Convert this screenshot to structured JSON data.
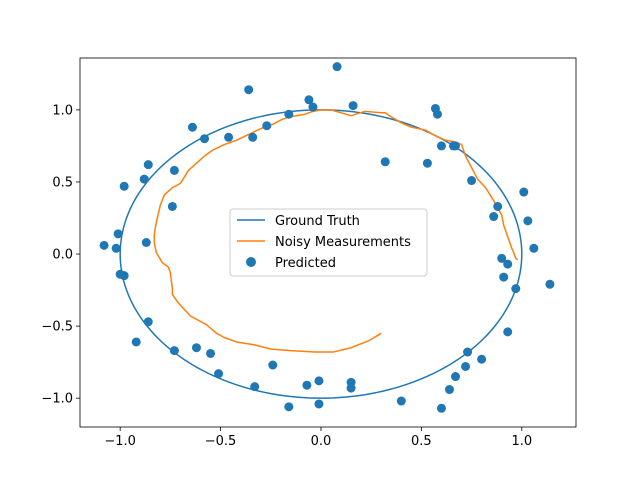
{
  "chart_data": {
    "type": "scatter",
    "title": "",
    "xlabel": "",
    "ylabel": "",
    "xlim": [
      -1.2,
      1.27
    ],
    "ylim": [
      -1.2,
      1.36
    ],
    "xticks": [
      -1.0,
      -0.5,
      0.0,
      0.5,
      1.0
    ],
    "xtick_labels": [
      "−1.0",
      "−0.5",
      "0.0",
      "0.5",
      "1.0"
    ],
    "yticks": [
      -1.0,
      -0.5,
      0.0,
      0.5,
      1.0
    ],
    "ytick_labels": [
      "−1.0",
      "−0.5",
      "0.0",
      "0.5",
      "1.0"
    ],
    "grid": false,
    "legend_position": "center",
    "colors": {
      "ground_truth": "#1f77b4",
      "noisy": "#ff7f0e",
      "predicted": "#1f77b4"
    },
    "series": [
      {
        "name": "Ground Truth",
        "kind": "line",
        "shape": "unit-circle",
        "x": [
          1.0,
          0.866,
          0.5,
          0.0,
          -0.5,
          -0.866,
          -1.0,
          -0.866,
          -0.5,
          0.0,
          0.5,
          0.866,
          1.0
        ],
        "y": [
          0.0,
          0.5,
          0.866,
          1.0,
          0.866,
          0.5,
          0.0,
          -0.5,
          -0.866,
          -1.0,
          -0.866,
          -0.5,
          0.0
        ]
      },
      {
        "name": "Noisy Measurements",
        "kind": "line",
        "x": [
          0.98,
          0.98,
          0.97,
          0.96,
          0.95,
          0.93,
          0.91,
          0.9,
          0.88,
          0.86,
          0.82,
          0.78,
          0.75,
          0.72,
          0.7,
          0.66,
          0.62,
          0.57,
          0.52,
          0.45,
          0.4,
          0.34,
          0.32,
          0.3,
          0.22,
          0.15,
          0.05,
          0.0,
          -0.04,
          -0.08,
          -0.12,
          -0.16,
          -0.2,
          -0.24,
          -0.3,
          -0.36,
          -0.42,
          -0.48,
          -0.54,
          -0.58,
          -0.62,
          -0.66,
          -0.7,
          -0.74,
          -0.78,
          -0.8,
          -0.81,
          -0.82,
          -0.83,
          -0.83,
          -0.82,
          -0.79,
          -0.76,
          -0.75,
          -0.74,
          -0.74,
          -0.71,
          -0.65,
          -0.57,
          -0.52,
          -0.48,
          -0.42,
          -0.33,
          -0.25,
          -0.15,
          -0.03,
          0.0,
          0.06,
          0.15,
          0.24,
          0.3
        ],
        "y": [
          -0.04,
          -0.04,
          -0.03,
          0.01,
          0.04,
          0.12,
          0.2,
          0.27,
          0.32,
          0.37,
          0.46,
          0.52,
          0.6,
          0.68,
          0.76,
          0.78,
          0.79,
          0.82,
          0.86,
          0.88,
          0.91,
          0.96,
          0.98,
          0.98,
          0.99,
          0.96,
          1.0,
          1.0,
          0.99,
          0.97,
          0.96,
          0.95,
          0.93,
          0.9,
          0.87,
          0.83,
          0.79,
          0.76,
          0.72,
          0.68,
          0.63,
          0.58,
          0.49,
          0.46,
          0.41,
          0.34,
          0.28,
          0.22,
          0.14,
          0.08,
          0.01,
          -0.06,
          -0.09,
          -0.13,
          -0.24,
          -0.28,
          -0.34,
          -0.43,
          -0.49,
          -0.55,
          -0.58,
          -0.61,
          -0.63,
          -0.66,
          -0.67,
          -0.68,
          -0.68,
          -0.68,
          -0.65,
          -0.6,
          -0.55
        ]
      },
      {
        "name": "Predicted",
        "kind": "scatter",
        "x": [
          0.08,
          -0.36,
          0.16,
          -0.06,
          -0.04,
          -0.16,
          -0.27,
          -0.34,
          -0.46,
          -0.58,
          -0.64,
          0.57,
          0.58,
          0.6,
          0.66,
          0.53,
          0.32,
          -0.86,
          -0.88,
          -0.98,
          -0.73,
          -0.74,
          -1.08,
          -1.02,
          -1.01,
          -0.98,
          -0.87,
          -1.0,
          -0.92,
          -0.86,
          -0.73,
          -0.62,
          -0.55,
          -0.51,
          -0.24,
          -0.33,
          -0.16,
          -0.07,
          -0.01,
          0.15,
          0.15,
          0.4,
          0.6,
          0.64,
          0.67,
          0.72,
          0.73,
          0.8,
          0.93,
          0.91,
          0.93,
          0.9,
          0.97,
          1.01,
          1.03,
          1.06,
          1.14,
          0.86,
          0.88,
          0.75,
          0.67,
          -0.01
        ],
        "y": [
          1.3,
          1.14,
          1.03,
          1.07,
          1.02,
          0.97,
          0.89,
          0.81,
          0.81,
          0.8,
          0.88,
          1.01,
          0.97,
          0.75,
          0.75,
          0.63,
          0.64,
          0.62,
          0.52,
          0.47,
          0.58,
          0.33,
          0.06,
          0.04,
          0.14,
          -0.15,
          0.08,
          -0.14,
          -0.61,
          -0.47,
          -0.67,
          -0.65,
          -0.69,
          -0.83,
          -0.77,
          -0.92,
          -1.06,
          -0.91,
          -0.88,
          -0.89,
          -0.93,
          -1.02,
          -1.07,
          -0.94,
          -0.85,
          -0.78,
          -0.68,
          -0.73,
          -0.54,
          -0.16,
          -0.07,
          -0.03,
          -0.24,
          0.43,
          0.23,
          0.04,
          -0.21,
          0.26,
          0.33,
          0.51,
          0.75,
          -1.04
        ]
      }
    ]
  }
}
